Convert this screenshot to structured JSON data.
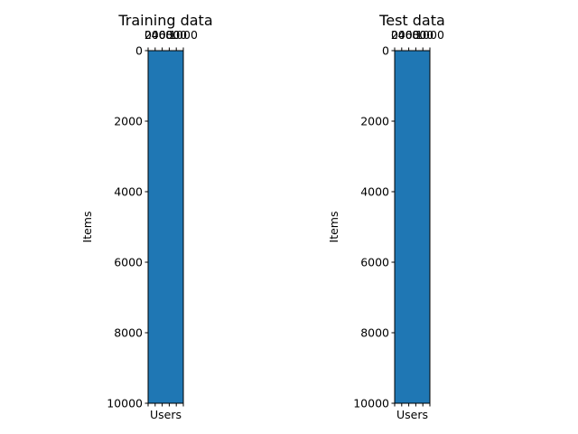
{
  "chart_data": [
    {
      "type": "heatmap",
      "title": "Training data",
      "xlabel": "Users",
      "ylabel": "Items",
      "x_ticks": [
        "0",
        "200",
        "400",
        "600",
        "800",
        "1000"
      ],
      "y_ticks": [
        "0",
        "2000",
        "4000",
        "6000",
        "8000",
        "10000"
      ],
      "xlim": [
        0,
        1000
      ],
      "ylim": [
        0,
        10000
      ],
      "x_axis_position": "top",
      "fill_color": "#1f77b4",
      "fill_value": "uniform"
    },
    {
      "type": "heatmap",
      "title": "Test data",
      "xlabel": "Users",
      "ylabel": "Items",
      "x_ticks": [
        "0",
        "200",
        "400",
        "600",
        "800",
        "1000"
      ],
      "y_ticks": [
        "0",
        "2000",
        "4000",
        "6000",
        "8000",
        "10000"
      ],
      "xlim": [
        0,
        1000
      ],
      "ylim": [
        0,
        10000
      ],
      "x_axis_position": "top",
      "fill_color": "#1f77b4",
      "fill_value": "uniform"
    }
  ]
}
